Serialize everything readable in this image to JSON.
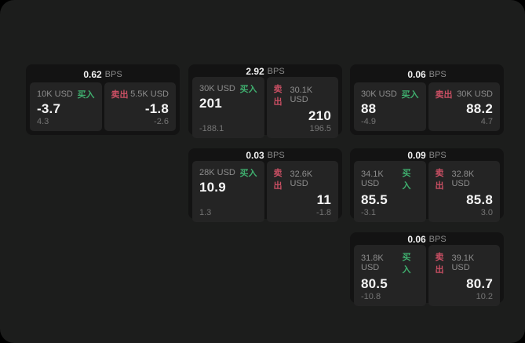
{
  "colors": {
    "page_bg": "#000000",
    "panel_bg": "#1c1d1c",
    "card_bg": "#131313",
    "tile_bg": "#242424",
    "buy_green": "#3fae6e",
    "sell_red": "#c94f63",
    "text_primary": "#f5f5f5",
    "text_muted": "#8d8d8d"
  },
  "labels": {
    "bps_unit": "BPS",
    "buy": "买入",
    "sell": "卖出"
  },
  "cards": [
    {
      "bps": "0.62",
      "row": 0,
      "col": 0,
      "buy": {
        "amount": "10K USD",
        "price": "-3.7",
        "delta": "4.3"
      },
      "sell": {
        "amount": "5.5K USD",
        "price": "-1.8",
        "delta": "-2.6"
      }
    },
    {
      "bps": "2.92",
      "row": 0,
      "col": 1,
      "buy": {
        "amount": "30K USD",
        "price": "201",
        "delta": "-188.1"
      },
      "sell": {
        "amount": "30.1K USD",
        "price": "210",
        "delta": "196.5"
      }
    },
    {
      "bps": "0.06",
      "row": 0,
      "col": 2,
      "buy": {
        "amount": "30K USD",
        "price": "88",
        "delta": "-4.9"
      },
      "sell": {
        "amount": "30K USD",
        "price": "88.2",
        "delta": "4.7"
      }
    },
    {
      "bps": "0.03",
      "row": 1,
      "col": 1,
      "buy": {
        "amount": "28K USD",
        "price": "10.9",
        "delta": "1.3"
      },
      "sell": {
        "amount": "32.6K USD",
        "price": "11",
        "delta": "-1.8"
      }
    },
    {
      "bps": "0.09",
      "row": 1,
      "col": 2,
      "buy": {
        "amount": "34.1K USD",
        "price": "85.5",
        "delta": "-3.1"
      },
      "sell": {
        "amount": "32.8K USD",
        "price": "85.8",
        "delta": "3.0"
      }
    },
    {
      "bps": "0.06",
      "row": 2,
      "col": 2,
      "buy": {
        "amount": "31.8K USD",
        "price": "80.5",
        "delta": "-10.8"
      },
      "sell": {
        "amount": "39.1K USD",
        "price": "80.7",
        "delta": "10.2"
      }
    }
  ]
}
